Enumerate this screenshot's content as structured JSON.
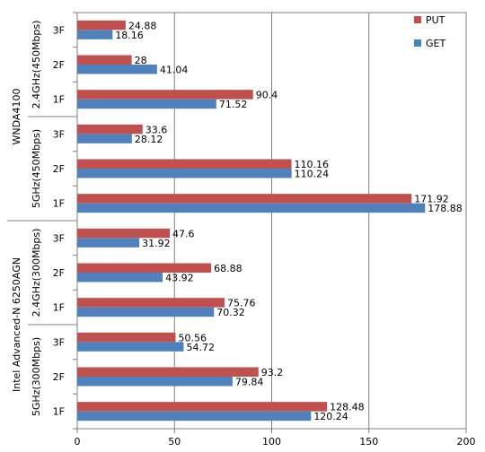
{
  "chart_data": {
    "type": "bar",
    "orientation": "horizontal",
    "xlim": [
      0,
      200
    ],
    "x_ticks": [
      "0",
      "50",
      "100",
      "150",
      "200"
    ],
    "grid": "vertical",
    "legend_position": "top-right",
    "colors": {
      "PUT": "#c0504d",
      "GET": "#4f81bd"
    },
    "series_names": [
      "PUT",
      "GET"
    ],
    "groups": [
      {
        "device": "WNDA4100",
        "bands": [
          {
            "band": "2.4GHz(450Mbps)",
            "rows": [
              {
                "floor": "3F",
                "PUT": 24.88,
                "GET": 18.16
              },
              {
                "floor": "2F",
                "PUT": 28,
                "GET": 41.04
              },
              {
                "floor": "1F",
                "PUT": 90.4,
                "GET": 71.52
              }
            ]
          },
          {
            "band": "5GHz(450Mbps)",
            "rows": [
              {
                "floor": "3F",
                "PUT": 33.6,
                "GET": 28.12
              },
              {
                "floor": "2F",
                "PUT": 110.16,
                "GET": 110.24
              },
              {
                "floor": "1F",
                "PUT": 171.92,
                "GET": 178.88
              }
            ]
          }
        ]
      },
      {
        "device": "Intel Advanced-N 6250AGN",
        "bands": [
          {
            "band": "2.4GHz(300Mbps)",
            "rows": [
              {
                "floor": "3F",
                "PUT": 47.6,
                "GET": 31.92
              },
              {
                "floor": "2F",
                "PUT": 68.88,
                "GET": 43.92
              },
              {
                "floor": "1F",
                "PUT": 75.76,
                "GET": 70.32
              }
            ]
          },
          {
            "band": "5GHz(300Mbps)",
            "rows": [
              {
                "floor": "3F",
                "PUT": 50.56,
                "GET": 54.72
              },
              {
                "floor": "2F",
                "PUT": 93.2,
                "GET": 79.84
              },
              {
                "floor": "1F",
                "PUT": 128.48,
                "GET": 120.24
              }
            ]
          }
        ]
      }
    ]
  }
}
